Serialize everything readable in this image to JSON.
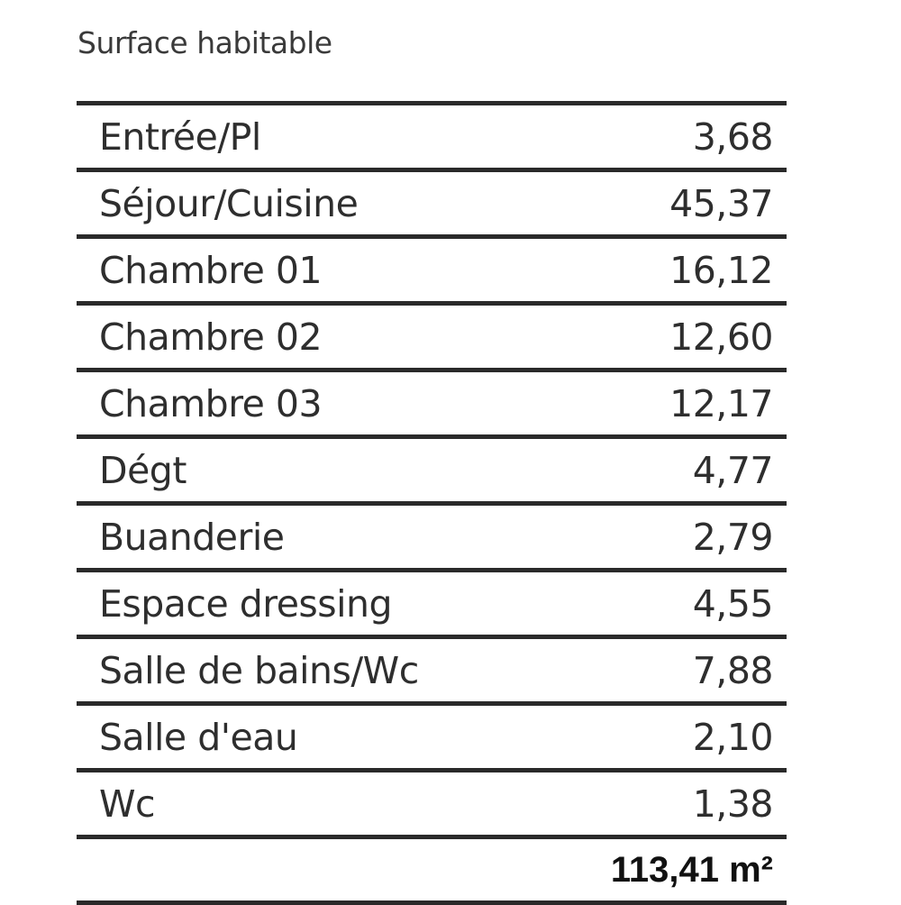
{
  "title": "Surface habitable",
  "rows": [
    {
      "label": "Entrée/Pl",
      "value": "3,68"
    },
    {
      "label": "Séjour/Cuisine",
      "value": "45,37"
    },
    {
      "label": "Chambre 01",
      "value": "16,12"
    },
    {
      "label": "Chambre 02",
      "value": "12,60"
    },
    {
      "label": "Chambre 03",
      "value": "12,17"
    },
    {
      "label": "Dégt",
      "value": "4,77"
    },
    {
      "label": "Buanderie",
      "value": "2,79"
    },
    {
      "label": "Espace dressing",
      "value": "4,55"
    },
    {
      "label": "Salle de bains/Wc",
      "value": "7,88"
    },
    {
      "label": "Salle d'eau",
      "value": "2,10"
    },
    {
      "label": "Wc",
      "value": "1,38"
    }
  ],
  "total": "113,41 m²"
}
